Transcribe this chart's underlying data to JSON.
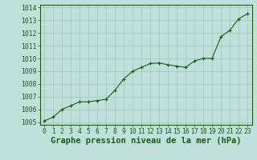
{
  "title": "Graphe pression niveau de la mer (hPa)",
  "x_values": [
    0,
    1,
    2,
    3,
    4,
    5,
    6,
    7,
    8,
    9,
    10,
    11,
    12,
    13,
    14,
    15,
    16,
    17,
    18,
    19,
    20,
    21,
    22,
    23
  ],
  "y_values": [
    1005.1,
    1005.4,
    1006.0,
    1006.3,
    1006.6,
    1006.6,
    1006.7,
    1006.8,
    1007.5,
    1008.4,
    1009.0,
    1009.3,
    1009.6,
    1009.65,
    1009.5,
    1009.4,
    1009.3,
    1009.8,
    1010.0,
    1010.0,
    1011.7,
    1012.2,
    1013.1,
    1013.5
  ],
  "ylim": [
    1004.8,
    1014.2
  ],
  "xlim": [
    -0.5,
    23.5
  ],
  "yticks": [
    1005,
    1006,
    1007,
    1008,
    1009,
    1010,
    1011,
    1012,
    1013,
    1014
  ],
  "xticks": [
    0,
    1,
    2,
    3,
    4,
    5,
    6,
    7,
    8,
    9,
    10,
    11,
    12,
    13,
    14,
    15,
    16,
    17,
    18,
    19,
    20,
    21,
    22,
    23
  ],
  "line_color": "#1a5c1a",
  "marker_color": "#1a5c1a",
  "bg_color": "#c0e0dc",
  "grid_color": "#a0c4c0",
  "axis_color": "#1a5c1a",
  "label_color": "#1a5c1a",
  "title_color": "#1a5c1a",
  "title_fontsize": 7.5,
  "tick_fontsize": 5.8
}
